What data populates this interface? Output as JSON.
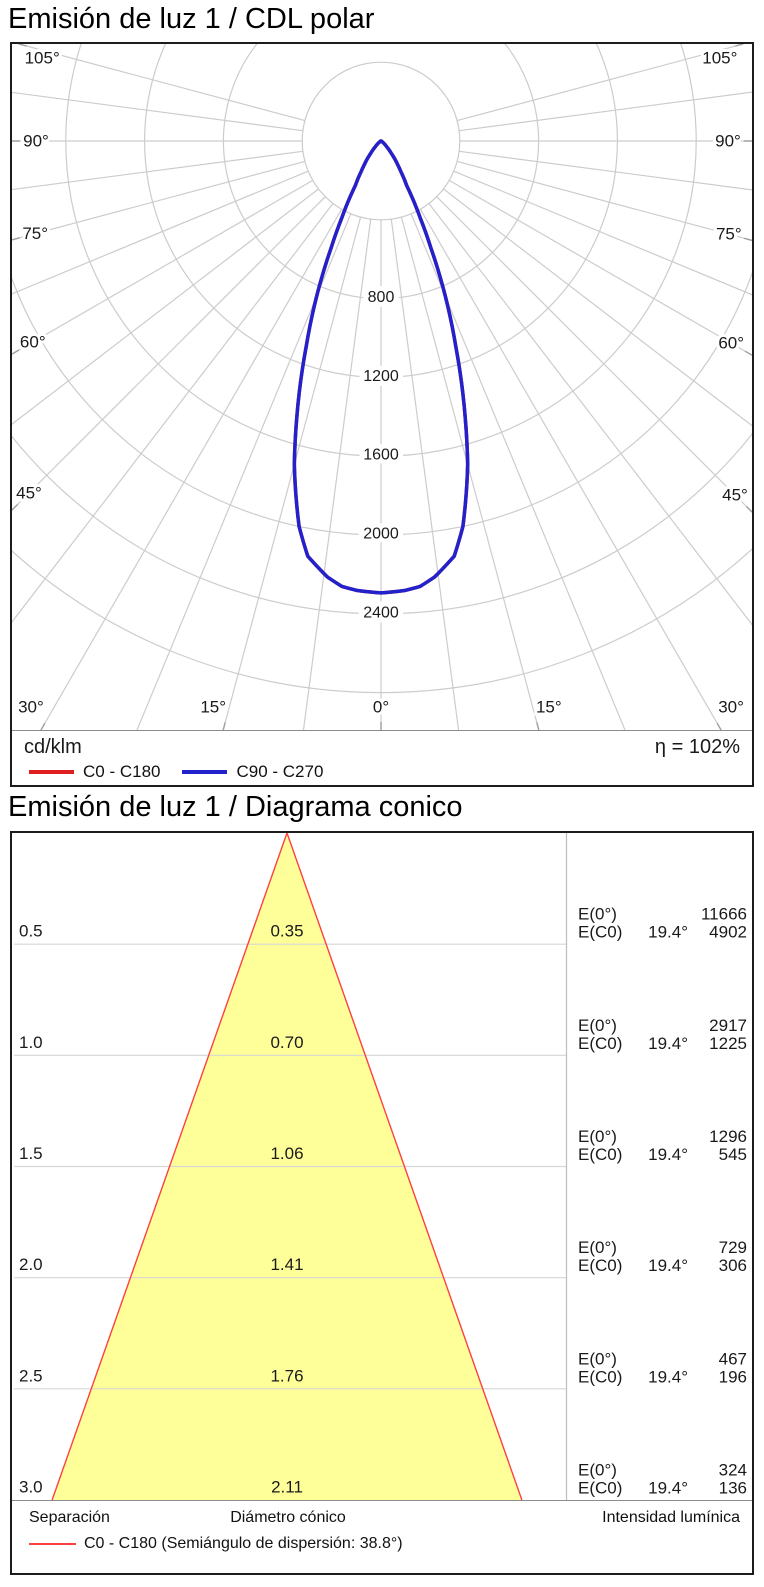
{
  "polar": {
    "title": "Emisión de luz 1 / CDL polar",
    "unit_label": "cd/klm",
    "efficiency": "η = 102%",
    "legend": [
      {
        "name": "C0 - C180",
        "color": "#e02020"
      },
      {
        "name": "C90 - C270",
        "color": "#2222cc"
      }
    ],
    "angle_labels": [
      "0°",
      "15°",
      "30°",
      "45°",
      "60°",
      "75°",
      "90°",
      "105°"
    ],
    "ring_labels": [
      "800",
      "1200",
      "1600",
      "2000",
      "2400"
    ]
  },
  "cone": {
    "title": "Emisión de luz 1 / Diagrama conico",
    "columns": {
      "separation": "Separación",
      "diameter": "Diámetro cónico",
      "intensity": "Intensidad lumínica"
    },
    "legend": {
      "name": "C0 - C180 (Semiángulo de dispersión: 38.8°)",
      "color": "#ff4040"
    },
    "e_labels": {
      "e0": "E(0°)",
      "ec0": "E(C0)",
      "angle": "19.4°"
    },
    "rows": [
      {
        "separation": "0.5",
        "diameter": "0.35",
        "e0": "11666",
        "ec0": "4902"
      },
      {
        "separation": "1.0",
        "diameter": "0.70",
        "e0": "2917",
        "ec0": "1225"
      },
      {
        "separation": "1.5",
        "diameter": "1.06",
        "e0": "1296",
        "ec0": "545"
      },
      {
        "separation": "2.0",
        "diameter": "1.41",
        "e0": "729",
        "ec0": "306"
      },
      {
        "separation": "2.5",
        "diameter": "1.76",
        "e0": "467",
        "ec0": "196"
      },
      {
        "separation": "3.0",
        "diameter": "2.11",
        "e0": "324",
        "ec0": "136"
      }
    ]
  },
  "chart_data": [
    {
      "type": "polar_line",
      "title": "Emisión de luz 1 / CDL polar",
      "unit": "cd/klm",
      "efficiency_percent": 102,
      "angle_axis": {
        "min_deg": -105,
        "max_deg": 105,
        "grid_step_deg": 7.5,
        "label_step_deg": 15
      },
      "radial_axis": {
        "rings": [
          400,
          800,
          1200,
          1600,
          2000,
          2400,
          2800
        ],
        "labeled_rings": [
          800,
          1200,
          1600,
          2000,
          2400
        ]
      },
      "series": [
        {
          "name": "C0 - C180",
          "color": "#e02020",
          "angles_deg": [
            0,
            3,
            5,
            7,
            10,
            12,
            15,
            17,
            20,
            22,
            25,
            27,
            30,
            33,
            35,
            40,
            45,
            50,
            55,
            60,
            70,
            80,
            90
          ],
          "values_cd_klm": [
            2294,
            2285,
            2270,
            2230,
            2140,
            2000,
            1700,
            1460,
            1110,
            905,
            600,
            440,
            260,
            185,
            150,
            80,
            40,
            20,
            10,
            6,
            3,
            1.5,
            0
          ]
        },
        {
          "name": "C90 - C270",
          "color": "#2222cc",
          "angles_deg": [
            0,
            3,
            5,
            7,
            10,
            12,
            15,
            17,
            20,
            22,
            25,
            27,
            30,
            33,
            35,
            40,
            45,
            50,
            55,
            60,
            70,
            80,
            90
          ],
          "values_cd_klm": [
            2294,
            2285,
            2270,
            2230,
            2140,
            2000,
            1700,
            1460,
            1110,
            905,
            600,
            440,
            260,
            185,
            150,
            80,
            40,
            20,
            10,
            6,
            3,
            1.5,
            0
          ]
        }
      ]
    },
    {
      "type": "cone_diagram",
      "title": "Emisión de luz 1 / Diagrama conico",
      "half_angle_deg": 19.4,
      "beam_angle_deg": 38.8,
      "separation_m": [
        0.5,
        1.0,
        1.5,
        2.0,
        2.5,
        3.0
      ],
      "cone_diameter_m": [
        0.35,
        0.7,
        1.06,
        1.41,
        1.76,
        2.11
      ],
      "E0_lux": [
        11666,
        2917,
        1296,
        729,
        467,
        324
      ],
      "EC0_lux": [
        4902,
        1225,
        545,
        306,
        196,
        136
      ],
      "fill": "#ffff99"
    }
  ]
}
